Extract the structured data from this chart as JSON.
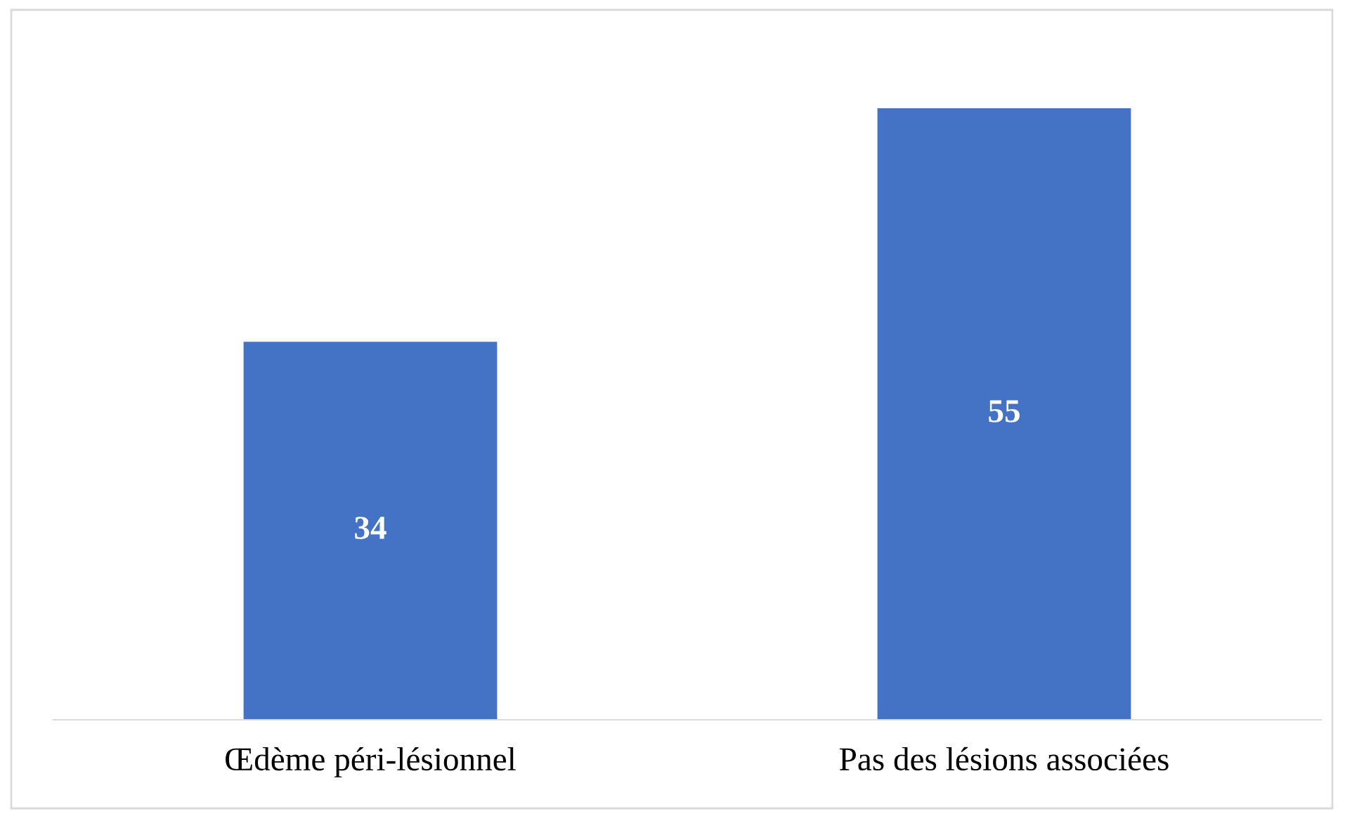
{
  "chart_data": {
    "type": "bar",
    "categories": [
      "Œdème péri-lésionnel",
      "Pas des lésions associées"
    ],
    "values": [
      34,
      55
    ],
    "color": "#4472c4",
    "data_labels": true,
    "grid": false,
    "legend": false
  }
}
